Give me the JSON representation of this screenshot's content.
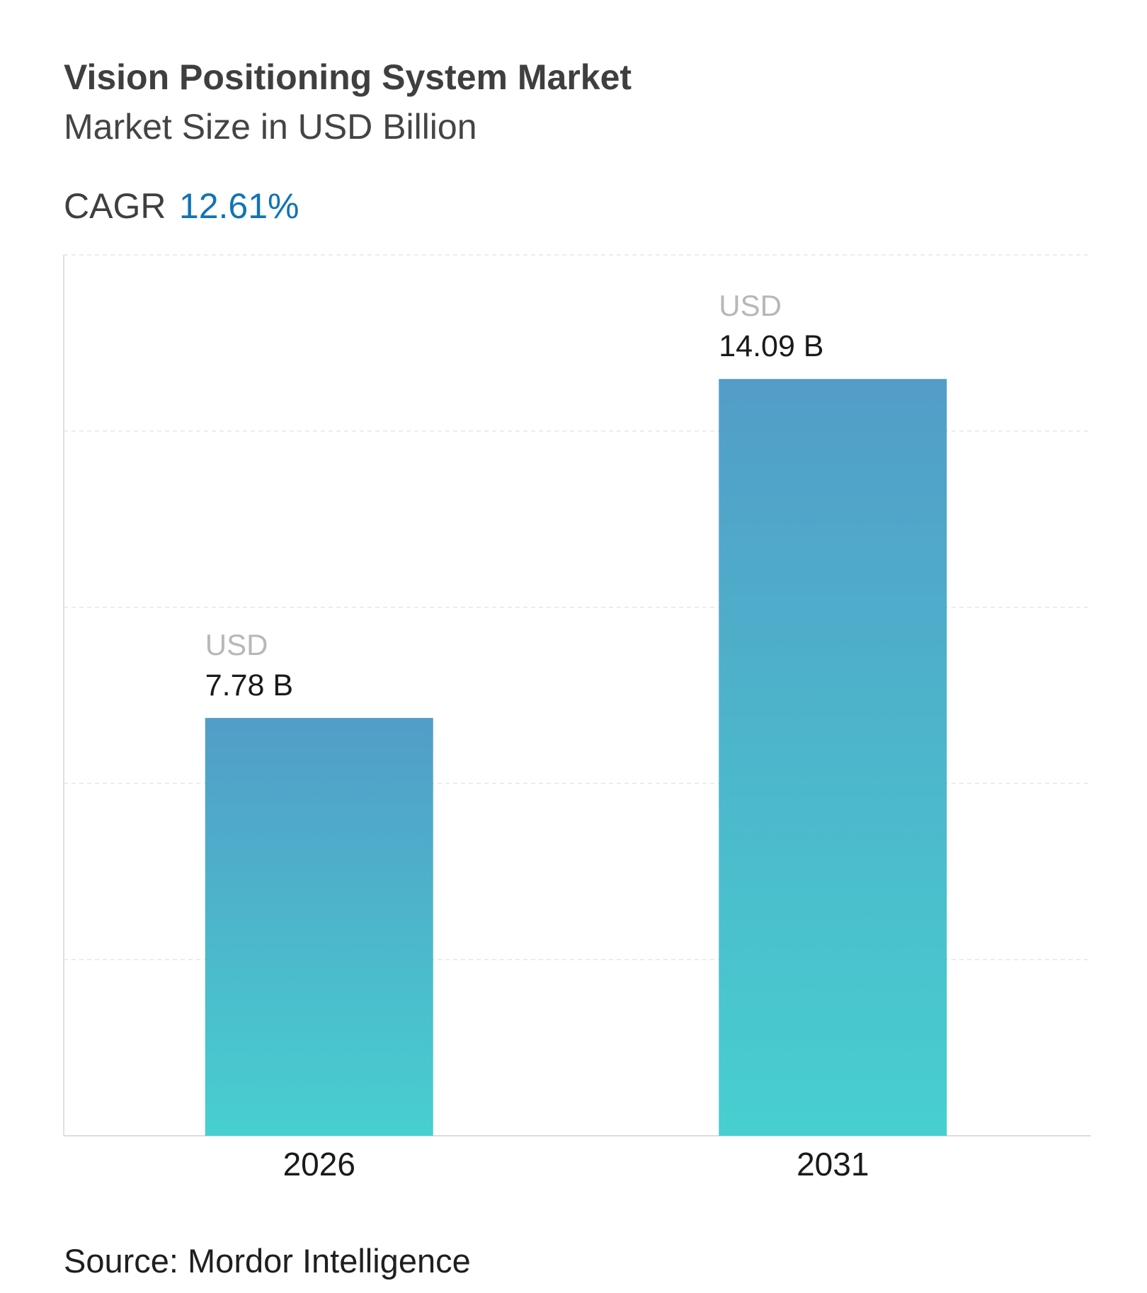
{
  "header": {
    "title": "Vision Positioning System Market",
    "subtitle": "Market Size in USD Billion",
    "cagr_label": "CAGR",
    "cagr_value": "12.61%"
  },
  "footer": {
    "source": "Source: Mordor Intelligence"
  },
  "colors": {
    "bar_top": "#529dc8",
    "bar_bottom": "#47cfcf",
    "cagr": "#1273b5",
    "grid": "#e6e6e6"
  },
  "chart_data": {
    "type": "bar",
    "title": "Vision Positioning System Market",
    "subtitle": "Market Size in USD Billion",
    "categories": [
      "2026",
      "2031"
    ],
    "values": [
      7.78,
      14.09
    ],
    "value_prefix": "USD",
    "value_labels": [
      "7.78 B",
      "14.09 B"
    ],
    "xlabel": "",
    "ylabel": "",
    "ylim": [
      0,
      16.4
    ],
    "grid": true,
    "legend": "none"
  }
}
